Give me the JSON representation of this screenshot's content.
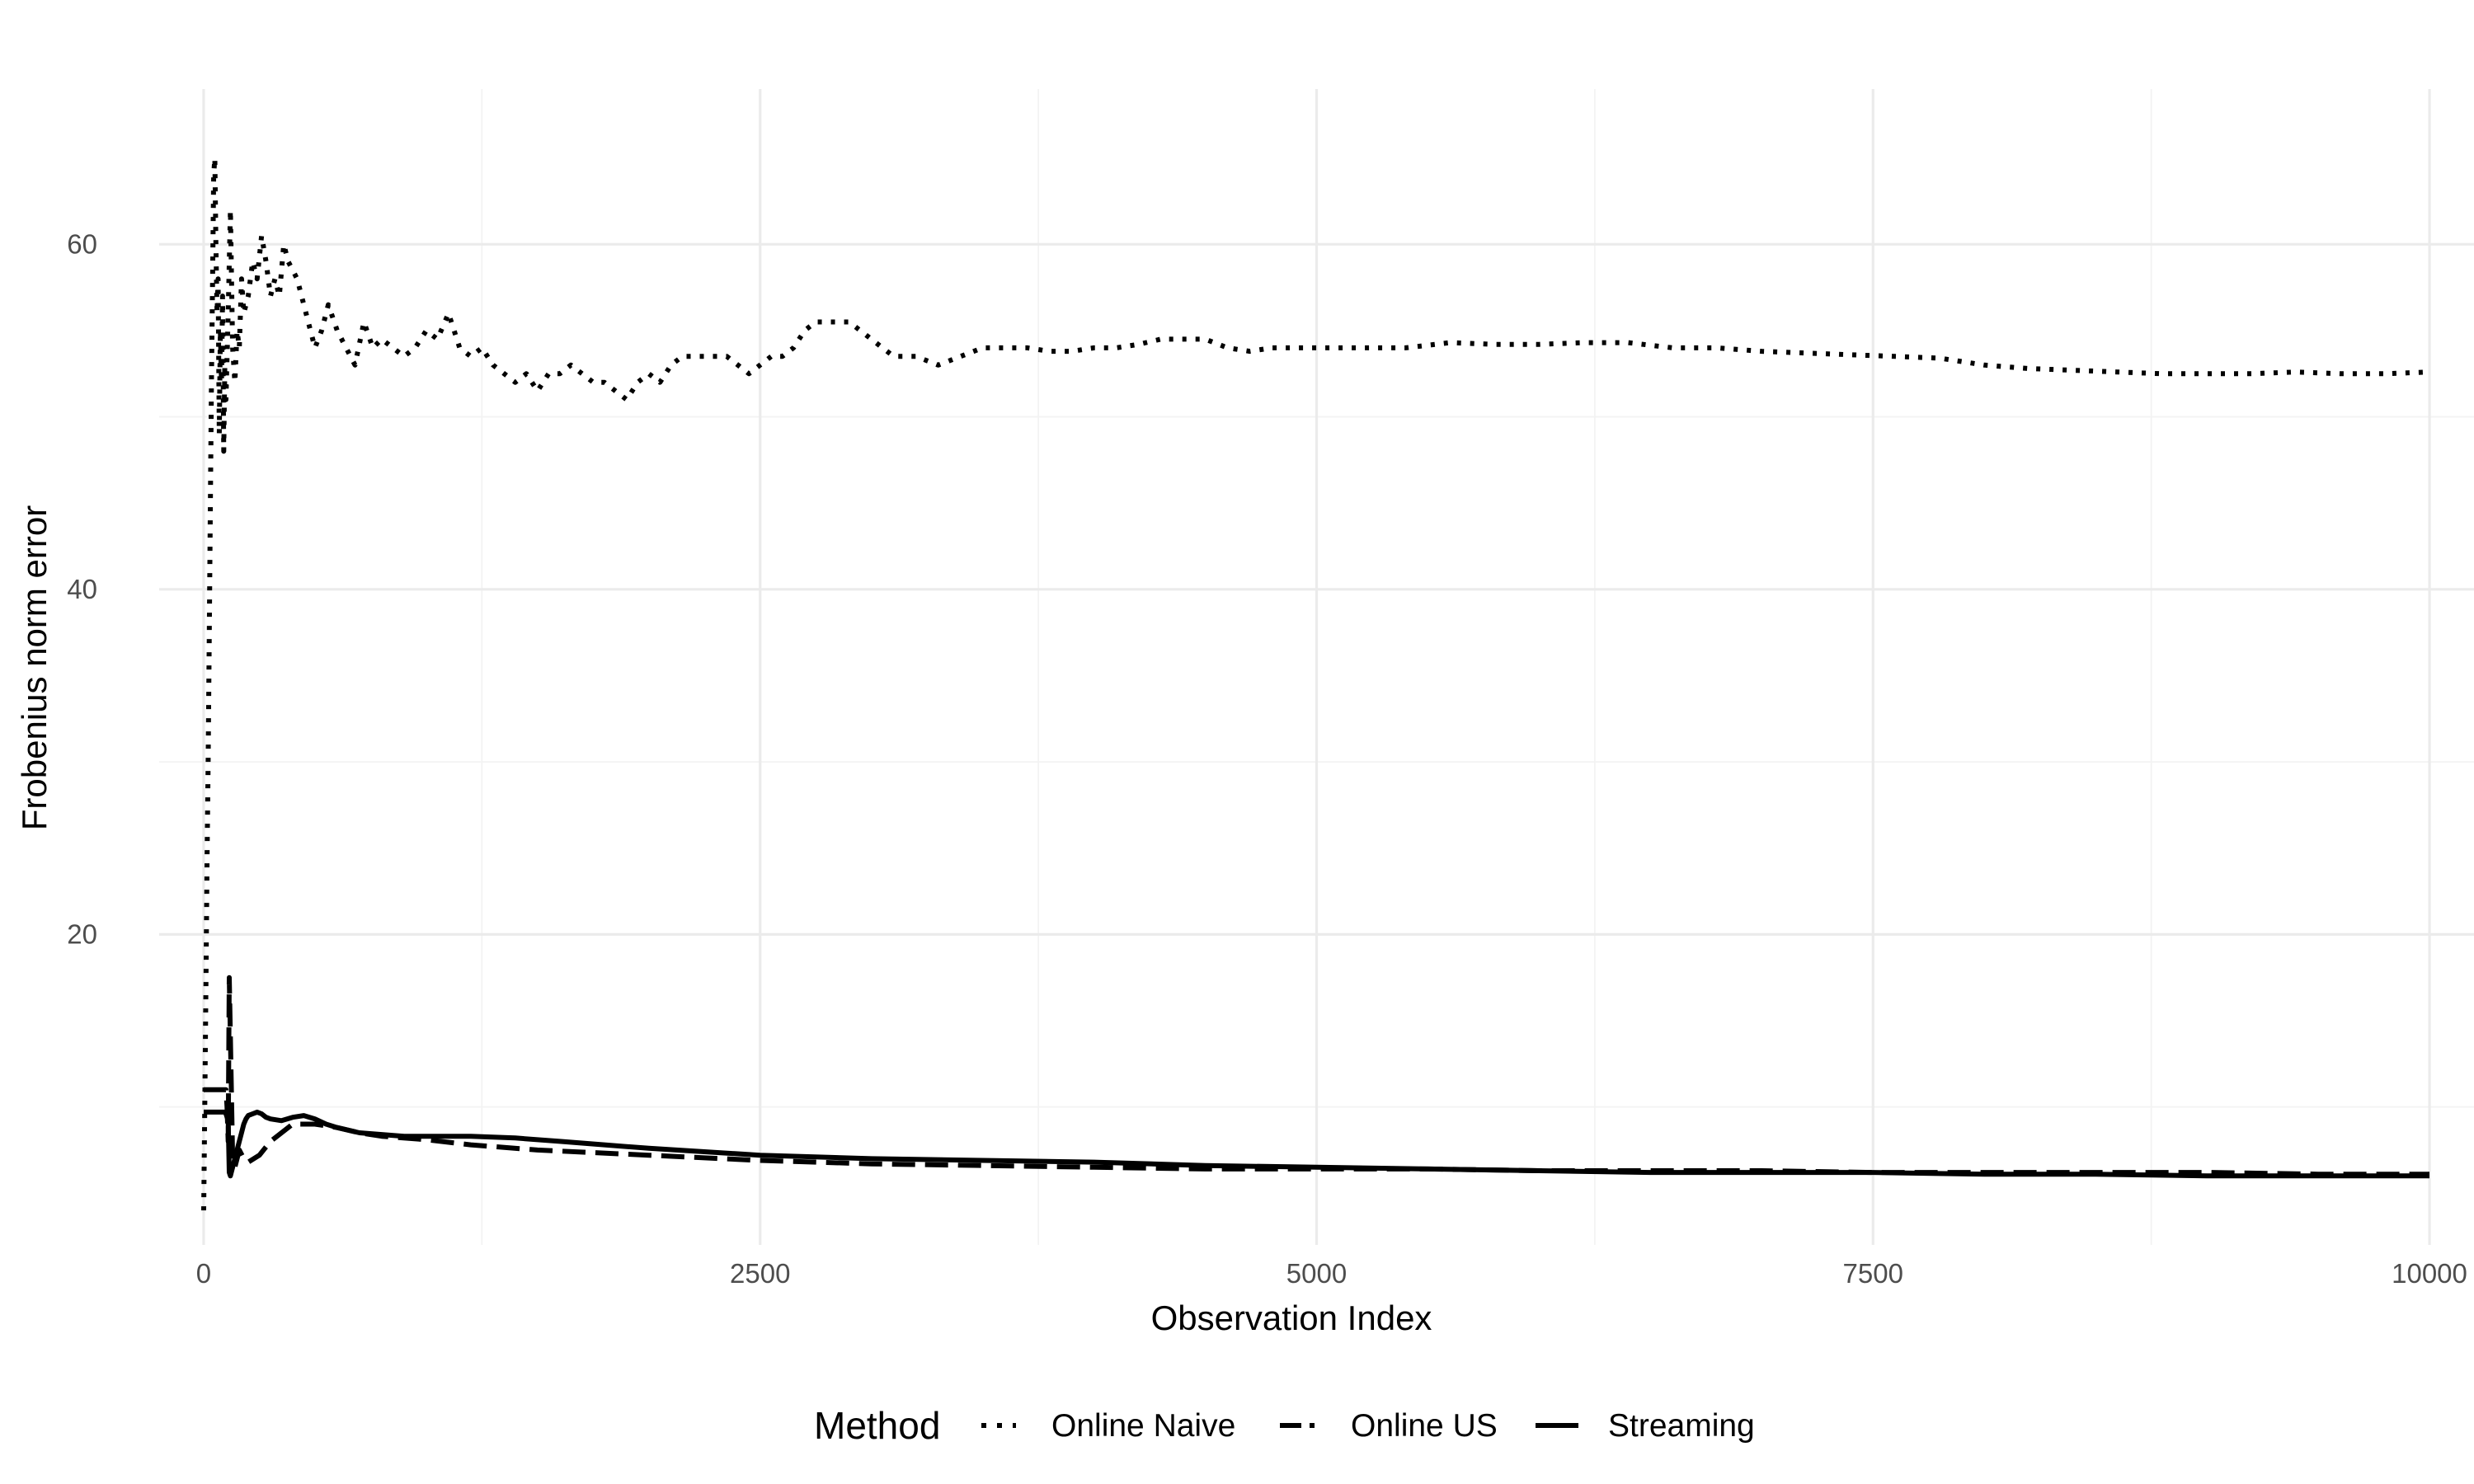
{
  "chart_data": {
    "type": "line",
    "title": "",
    "xlabel": "Observation Index",
    "ylabel": "Frobenius norm error",
    "xlim": [
      -200,
      10200
    ],
    "ylim": [
      2,
      69
    ],
    "x_ticks": [
      0,
      2500,
      5000,
      7500,
      10000
    ],
    "x_tick_labels": [
      "0",
      "2500",
      "5000",
      "7500",
      "10000"
    ],
    "y_ticks": [
      20,
      40,
      60
    ],
    "y_tick_labels": [
      "20",
      "40",
      "60"
    ],
    "grid": true,
    "legend": {
      "title": "Method",
      "position": "bottom"
    },
    "series": [
      {
        "name": "Online Naive",
        "style": "dotted",
        "x": [
          0,
          5,
          10,
          15,
          20,
          25,
          30,
          35,
          40,
          45,
          50,
          55,
          60,
          65,
          70,
          75,
          80,
          85,
          90,
          95,
          100,
          110,
          120,
          130,
          140,
          150,
          160,
          170,
          180,
          200,
          220,
          240,
          260,
          280,
          300,
          320,
          340,
          360,
          380,
          400,
          420,
          440,
          460,
          480,
          500,
          530,
          560,
          600,
          640,
          680,
          720,
          760,
          800,
          850,
          900,
          950,
          1000,
          1050,
          1100,
          1150,
          1200,
          1250,
          1300,
          1350,
          1400,
          1450,
          1500,
          1550,
          1600,
          1650,
          1700,
          1750,
          1800,
          1850,
          1900,
          1950,
          2000,
          2050,
          2100,
          2150,
          2200,
          2250,
          2300,
          2350,
          2400,
          2450,
          2500,
          2550,
          2600,
          2650,
          2700,
          2750,
          2800,
          2850,
          2900,
          2950,
          3000,
          3050,
          3100,
          3200,
          3300,
          3400,
          3500,
          3600,
          3700,
          3800,
          3900,
          4000,
          4100,
          4200,
          4300,
          4400,
          4500,
          4600,
          4700,
          4800,
          4900,
          5000,
          5200,
          5400,
          5600,
          5800,
          6000,
          6200,
          6400,
          6600,
          6800,
          7000,
          7200,
          7400,
          7600,
          7800,
          8000,
          8200,
          8400,
          8600,
          8800,
          9000,
          9200,
          9400,
          9600,
          9800,
          10000
        ],
        "y": [
          4,
          10,
          17,
          24,
          30,
          37,
          45,
          52,
          58,
          64,
          65,
          60,
          56,
          58,
          49,
          55,
          52,
          57,
          48,
          53,
          51,
          56,
          62,
          54,
          52,
          55,
          54,
          58,
          56,
          57,
          59,
          58,
          60.5,
          59,
          57,
          58,
          57,
          60,
          59,
          58.5,
          58,
          57,
          56,
          55,
          54,
          55,
          56.5,
          55,
          54,
          53,
          55.5,
          54,
          54.5,
          54,
          53.5,
          54,
          55,
          54.5,
          56,
          54,
          53.5,
          54,
          53,
          52.5,
          52,
          52.5,
          51.5,
          52.5,
          52.5,
          53,
          52.5,
          52,
          52,
          51.5,
          51,
          52,
          52.5,
          52,
          53,
          53.5,
          53.5,
          53.5,
          53.5,
          53.5,
          53,
          52.5,
          53,
          53.5,
          53.5,
          54,
          55,
          55.5,
          55.5,
          55.5,
          55.5,
          55,
          54.5,
          54,
          53.5,
          53.5,
          53,
          53.5,
          54,
          54,
          54,
          53.8,
          53.8,
          54,
          54,
          54.2,
          54.5,
          54.5,
          54.5,
          54,
          53.8,
          54,
          54,
          54,
          54,
          54,
          54.3,
          54.2,
          54.2,
          54.3,
          54.3,
          54,
          54,
          53.8,
          53.7,
          53.6,
          53.5,
          53.4,
          53,
          52.8,
          52.7,
          52.6,
          52.5,
          52.5,
          52.5,
          52.6,
          52.5,
          52.5,
          52.6
        ]
      },
      {
        "name": "Online US",
        "style": "dashed",
        "x": [
          0,
          20,
          40,
          60,
          80,
          90,
          100,
          105,
          110,
          115,
          120,
          130,
          140,
          150,
          160,
          180,
          200,
          250,
          300,
          350,
          400,
          450,
          500,
          600,
          700,
          800,
          1000,
          1200,
          1500,
          2000,
          2500,
          3000,
          3500,
          4000,
          4500,
          5000,
          5500,
          6000,
          6500,
          7000,
          7500,
          8000,
          8500,
          9000,
          9500,
          10000
        ],
        "y": [
          11,
          11,
          11,
          11,
          11,
          11,
          11,
          10,
          8,
          17.5,
          14,
          7,
          6.5,
          7,
          7.5,
          7,
          6.8,
          7.2,
          8,
          8.5,
          9,
          9,
          9,
          8.8,
          8.5,
          8.3,
          8.1,
          7.8,
          7.5,
          7.2,
          6.9,
          6.7,
          6.6,
          6.5,
          6.4,
          6.4,
          6.4,
          6.3,
          6.3,
          6.3,
          6.2,
          6.2,
          6.2,
          6.2,
          6.1,
          6.1
        ]
      },
      {
        "name": "Streaming",
        "style": "solid",
        "x": [
          0,
          20,
          40,
          60,
          80,
          90,
          95,
          100,
          110,
          115,
          120,
          130,
          140,
          150,
          160,
          170,
          180,
          190,
          200,
          220,
          240,
          260,
          280,
          300,
          350,
          400,
          450,
          500,
          550,
          600,
          700,
          800,
          900,
          1000,
          1200,
          1400,
          1600,
          1800,
          2000,
          2500,
          3000,
          3500,
          4000,
          4500,
          5000,
          5500,
          6000,
          6500,
          7000,
          7500,
          8000,
          8500,
          9000,
          9500,
          10000
        ],
        "y": [
          9.7,
          9.7,
          9.7,
          9.7,
          9.7,
          9.7,
          9.7,
          9.6,
          9.2,
          6.2,
          6.0,
          6.5,
          7.0,
          7.5,
          8.0,
          8.5,
          9.0,
          9.3,
          9.5,
          9.6,
          9.7,
          9.6,
          9.4,
          9.3,
          9.2,
          9.4,
          9.5,
          9.3,
          9.0,
          8.8,
          8.5,
          8.4,
          8.3,
          8.3,
          8.3,
          8.2,
          8.0,
          7.8,
          7.6,
          7.2,
          7.0,
          6.9,
          6.8,
          6.6,
          6.5,
          6.4,
          6.3,
          6.2,
          6.2,
          6.2,
          6.1,
          6.1,
          6.0,
          6.0,
          6.0
        ]
      }
    ]
  }
}
